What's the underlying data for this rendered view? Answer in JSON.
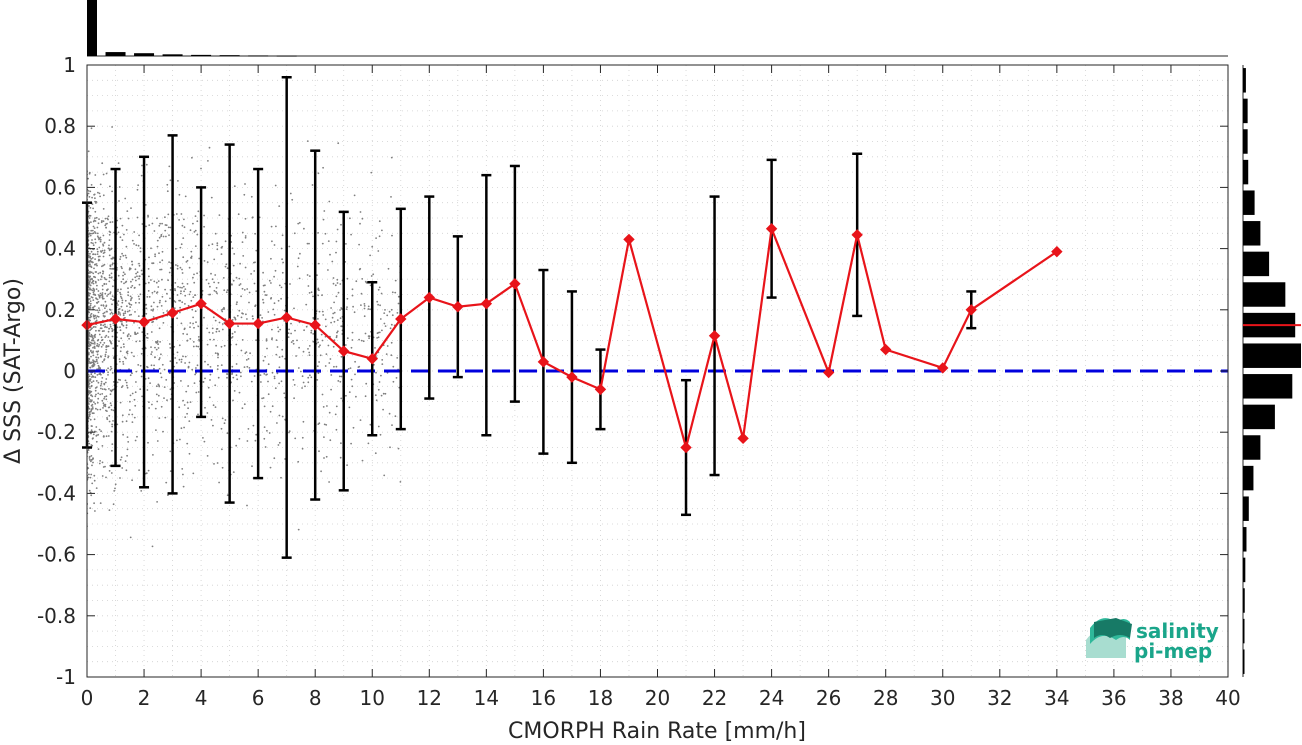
{
  "chart_data": {
    "type": "line",
    "xlabel": "CMORPH Rain Rate [mm/h]",
    "ylabel": "Δ SSS (SAT-Argo)",
    "xlim": [
      0,
      40
    ],
    "ylim": [
      -1,
      1
    ],
    "x_ticks": [
      "0",
      "2",
      "4",
      "6",
      "8",
      "10",
      "12",
      "14",
      "16",
      "18",
      "20",
      "22",
      "24",
      "26",
      "28",
      "30",
      "32",
      "34",
      "36",
      "38",
      "40"
    ],
    "y_ticks": [
      "1",
      "0.8",
      "0.6",
      "0.4",
      "0.2",
      "0",
      "-0.2",
      "-0.4",
      "-0.6",
      "-0.8",
      "-1"
    ],
    "grid": true,
    "reference_line": {
      "y": 0,
      "style": "dashed",
      "color": "#0000dd"
    },
    "series": [
      {
        "type": "line-with-errorbars",
        "color": "#e8141a",
        "errorbar_color": "#000000",
        "points": [
          {
            "x": 0,
            "y": 0.15,
            "lo": -0.25,
            "hi": 0.55
          },
          {
            "x": 1,
            "y": 0.17,
            "lo": -0.31,
            "hi": 0.66
          },
          {
            "x": 2,
            "y": 0.16,
            "lo": -0.38,
            "hi": 0.7
          },
          {
            "x": 3,
            "y": 0.19,
            "lo": -0.4,
            "hi": 0.77
          },
          {
            "x": 4,
            "y": 0.22,
            "lo": -0.15,
            "hi": 0.6
          },
          {
            "x": 5,
            "y": 0.155,
            "lo": -0.43,
            "hi": 0.74
          },
          {
            "x": 6,
            "y": 0.155,
            "lo": -0.35,
            "hi": 0.66
          },
          {
            "x": 7,
            "y": 0.175,
            "lo": -0.61,
            "hi": 0.96
          },
          {
            "x": 8,
            "y": 0.15,
            "lo": -0.42,
            "hi": 0.72
          },
          {
            "x": 9,
            "y": 0.065,
            "lo": -0.39,
            "hi": 0.52
          },
          {
            "x": 10,
            "y": 0.04,
            "lo": -0.21,
            "hi": 0.29
          },
          {
            "x": 11,
            "y": 0.17,
            "lo": -0.19,
            "hi": 0.53
          },
          {
            "x": 12,
            "y": 0.24,
            "lo": -0.09,
            "hi": 0.57
          },
          {
            "x": 13,
            "y": 0.21,
            "lo": -0.02,
            "hi": 0.44
          },
          {
            "x": 14,
            "y": 0.22,
            "lo": -0.21,
            "hi": 0.64
          },
          {
            "x": 15,
            "y": 0.285,
            "lo": -0.1,
            "hi": 0.67
          },
          {
            "x": 16,
            "y": 0.03,
            "lo": -0.27,
            "hi": 0.33
          },
          {
            "x": 17,
            "y": -0.02,
            "lo": -0.3,
            "hi": 0.26
          },
          {
            "x": 18,
            "y": -0.06,
            "lo": -0.19,
            "hi": 0.07
          },
          {
            "x": 19,
            "y": 0.43,
            "lo": null,
            "hi": null
          },
          {
            "x": 21,
            "y": -0.25,
            "lo": -0.47,
            "hi": -0.03
          },
          {
            "x": 22,
            "y": 0.115,
            "lo": -0.34,
            "hi": 0.57
          },
          {
            "x": 23,
            "y": -0.22,
            "lo": null,
            "hi": null
          },
          {
            "x": 24,
            "y": 0.465,
            "lo": 0.24,
            "hi": 0.69
          },
          {
            "x": 26,
            "y": -0.005,
            "lo": null,
            "hi": null
          },
          {
            "x": 27,
            "y": 0.445,
            "lo": 0.18,
            "hi": 0.71
          },
          {
            "x": 28,
            "y": 0.07,
            "lo": null,
            "hi": null
          },
          {
            "x": 30,
            "y": 0.01,
            "lo": null,
            "hi": null
          },
          {
            "x": 31,
            "y": 0.2,
            "lo": 0.14,
            "hi": 0.26
          },
          {
            "x": 34,
            "y": 0.39,
            "lo": null,
            "hi": null
          }
        ]
      }
    ],
    "scatter_background": {
      "color": "#7f7f7f",
      "note": "dense scatter at low rain rates"
    },
    "top_histogram": {
      "bins_x": [
        0.25,
        1,
        2,
        3,
        4,
        5,
        6,
        7
      ],
      "relative_heights": [
        1.0,
        0.07,
        0.05,
        0.03,
        0.02,
        0.015,
        0.01,
        0.008
      ]
    },
    "right_histogram": {
      "bins_y": [
        0.95,
        0.85,
        0.75,
        0.65,
        0.55,
        0.45,
        0.35,
        0.25,
        0.15,
        0.05,
        -0.05,
        -0.15,
        -0.25,
        -0.35,
        -0.45,
        -0.55,
        -0.65,
        -0.75,
        -0.85,
        -0.95
      ],
      "relative_widths": [
        0.05,
        0.08,
        0.08,
        0.09,
        0.2,
        0.3,
        0.45,
        0.73,
        0.9,
        1.0,
        0.85,
        0.55,
        0.3,
        0.18,
        0.1,
        0.06,
        0.04,
        0.03,
        0.02,
        0.01
      ],
      "mean_line": {
        "y": 0.15,
        "color": "#e8141a"
      }
    }
  },
  "logo": {
    "line1": "salinity",
    "line2": "pi-mep",
    "color": "#1aa58a"
  }
}
